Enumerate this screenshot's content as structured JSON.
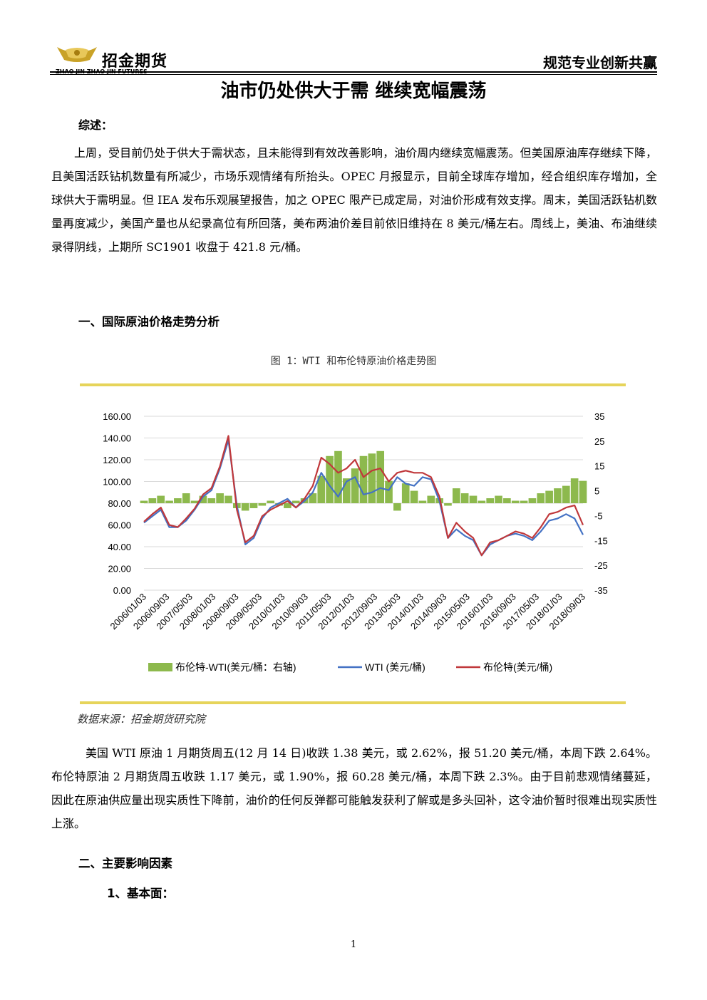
{
  "header": {
    "logo_cn": "招金期货",
    "logo_en": "ZHAO JIN   ZHAO JIN FUTURES",
    "slogan": "规范专业创新共赢"
  },
  "title": "油市仍处供大于需  继续宽幅震荡",
  "summary_heading": "综述：",
  "summary_text": "上周，受目前仍处于供大于需状态，且未能得到有效改善影响，油价周内继续宽幅震荡。但美国原油库存继续下降，且美国活跃钻机数量有所减少，市场乐观情绪有所抬头。OPEC 月报显示，目前全球库存增加，经合组织库存增加，全球供大于需明显。但 IEA 发布乐观展望报告，加之 OPEC 限产已成定局，对油价形成有效支撑。周末，美国活跃钻机数量再度减少，美国产量也从纪录高位有所回落，美布两油价差目前依旧维持在 8 美元/桶左右。周线上，美油、布油继续录得阴线，上期所 SC1901 收盘于 421.8 元/桶。",
  "section1_heading": "一、国际原油价格走势分析",
  "figure_caption": "图 1：WTI 和布伦特原油价格走势图",
  "source_note": "数据来源：招金期货研究院",
  "para2": "美国 WTI 原油 1 月期货周五(12 月 14 日)收跌 1.38 美元，或 2.62%，报 51.20 美元/桶，本周下跌 2.64%。布伦特原油 2 月期货周五收跌 1.17 美元，或 1.90%，报 60.28 美元/桶，本周下跌 2.3%。由于目前悲观情绪蔓延，因此在原油供应量出现实质性下降前，油价的任何反弹都可能触发获利了解或是多头回补，这令油价暂时很难出现实质性上涨。",
  "section2_heading": "二、主要影响因素",
  "section2_sub": "1、基本面：",
  "page_number": "1",
  "colors": {
    "accent_bar": "#e6d45a",
    "wti": "#4472c4",
    "brent": "#c0383b",
    "spread": "#8db94d"
  },
  "chart_data": {
    "type": "line",
    "x_tick_labels": [
      "2006/01/03",
      "2006/09/03",
      "2007/05/03",
      "2008/01/03",
      "2008/09/03",
      "2009/05/03",
      "2010/01/03",
      "2010/09/03",
      "2011/05/03",
      "2012/01/03",
      "2012/09/03",
      "2013/05/03",
      "2014/01/03",
      "2014/09/03",
      "2015/05/03",
      "2016/01/03",
      "2016/09/03",
      "2017/05/03",
      "2018/01/03",
      "2018/09/03"
    ],
    "y_left_ticks": [
      "160.00",
      "140.00",
      "120.00",
      "100.00",
      "80.00",
      "60.00",
      "40.00",
      "20.00",
      "0.00"
    ],
    "y_right_ticks": [
      "35",
      "25",
      "15",
      "5",
      "-5",
      "-15",
      "-25",
      "-35"
    ],
    "ylim_left": [
      0,
      160
    ],
    "ylim_right": [
      -35,
      35
    ],
    "legend_position": "bottom",
    "grid": true,
    "x": [
      "2006-01",
      "2006-04",
      "2006-07",
      "2006-10",
      "2007-01",
      "2007-04",
      "2007-07",
      "2007-10",
      "2008-01",
      "2008-04",
      "2008-07",
      "2008-10",
      "2009-01",
      "2009-04",
      "2009-07",
      "2009-10",
      "2010-01",
      "2010-04",
      "2010-07",
      "2010-10",
      "2011-01",
      "2011-04",
      "2011-07",
      "2011-10",
      "2012-01",
      "2012-04",
      "2012-07",
      "2012-10",
      "2013-01",
      "2013-04",
      "2013-07",
      "2013-10",
      "2014-01",
      "2014-04",
      "2014-07",
      "2014-10",
      "2015-01",
      "2015-04",
      "2015-07",
      "2015-10",
      "2016-01",
      "2016-04",
      "2016-07",
      "2016-10",
      "2017-01",
      "2017-04",
      "2017-07",
      "2017-10",
      "2018-01",
      "2018-04",
      "2018-07",
      "2018-10",
      "2018-12"
    ],
    "series": [
      {
        "name": "布伦特-WTI(美元/桶：右轴)",
        "kind": "area",
        "axis": "right",
        "values": [
          1,
          2,
          3,
          1,
          2,
          4,
          1,
          3,
          2,
          4,
          3,
          -2,
          -3,
          -2,
          -1,
          1,
          -1,
          -2,
          1,
          2,
          4,
          11,
          19,
          21,
          10,
          14,
          19,
          20,
          21,
          9,
          -3,
          8,
          5,
          1,
          3,
          2,
          -1,
          6,
          4,
          3,
          1,
          2,
          3,
          2,
          1,
          1,
          2,
          4,
          5,
          6,
          7,
          10,
          9
        ]
      },
      {
        "name": "WTI (美元/桶)",
        "kind": "line",
        "axis": "left",
        "values": [
          62,
          68,
          74,
          58,
          58,
          64,
          74,
          86,
          92,
          112,
          138,
          78,
          42,
          48,
          66,
          76,
          80,
          84,
          76,
          82,
          90,
          108,
          96,
          86,
          100,
          104,
          88,
          90,
          94,
          92,
          104,
          98,
          96,
          104,
          102,
          82,
          48,
          56,
          50,
          46,
          32,
          42,
          46,
          50,
          52,
          50,
          46,
          54,
          64,
          66,
          70,
          66,
          51
        ]
      },
      {
        "name": "布伦特(美元/桶)",
        "kind": "line",
        "axis": "left",
        "values": [
          63,
          70,
          76,
          60,
          58,
          66,
          75,
          88,
          94,
          114,
          142,
          74,
          44,
          50,
          68,
          74,
          78,
          82,
          76,
          84,
          96,
          122,
          116,
          108,
          112,
          120,
          104,
          110,
          112,
          100,
          108,
          110,
          108,
          108,
          104,
          86,
          48,
          62,
          54,
          48,
          32,
          44,
          46,
          50,
          54,
          52,
          48,
          58,
          70,
          72,
          76,
          78,
          60
        ]
      }
    ]
  }
}
